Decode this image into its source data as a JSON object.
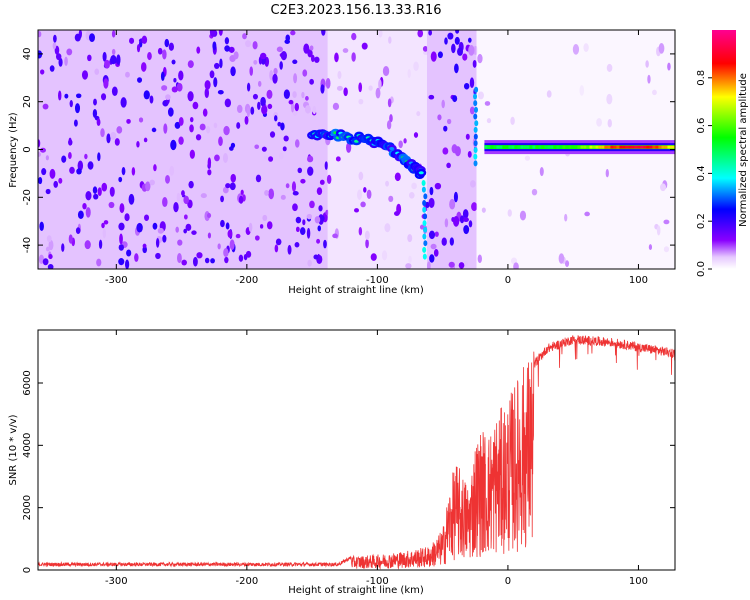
{
  "title": "C2E3.2023.156.13.33.R16",
  "chart_data": [
    {
      "type": "heatmap",
      "xlabel": "Height of straight line (km)",
      "ylabel": "Frequency (Hz)",
      "xlim": [
        -360,
        128
      ],
      "ylim": [
        -50,
        50
      ],
      "x_ticks": [
        -300,
        -200,
        -100,
        0,
        100
      ],
      "y_ticks": [
        -40,
        -20,
        0,
        20,
        40
      ],
      "grid": false,
      "colorbar": {
        "label": "Normalized spectral amplitude",
        "range": [
          0.0,
          1.0
        ],
        "ticks": [
          0.0,
          0.2,
          0.4,
          0.6,
          0.8
        ],
        "colormap": "rainbow (white-purple-blue-cyan-green-yellow-red-magenta)"
      },
      "regions": [
        {
          "x": [
            -360,
            -138
          ],
          "content": "noise",
          "level": 0.3
        },
        {
          "x": [
            -138,
            -62
          ],
          "content": "sparse noise",
          "level": 0.15
        },
        {
          "x": [
            -62,
            -24
          ],
          "content": "noise",
          "level": 0.3
        },
        {
          "x": [
            -24,
            128
          ],
          "content": "sparse noise",
          "level": 0.05
        }
      ],
      "signal_trace": {
        "x": [
          -150,
          -130,
          -110,
          -95,
          -80,
          -70,
          -66
        ],
        "freq": [
          5,
          6,
          4,
          2,
          -3,
          -8,
          -10
        ],
        "x_stable": [
          -18,
          128
        ],
        "freq_stable": 1,
        "peak_amplitude": 1.0
      }
    },
    {
      "type": "line",
      "xlabel": "Height of straight line (km)",
      "ylabel": "SNR (10 * v/v)",
      "xlim": [
        -360,
        128
      ],
      "ylim": [
        0,
        7700
      ],
      "x_ticks": [
        -300,
        -200,
        -100,
        0,
        100
      ],
      "y_ticks": [
        0,
        2000,
        4000,
        6000
      ],
      "grid": false,
      "series_color": "#ee3333",
      "envelope": {
        "x": [
          -360,
          -130,
          -120,
          -100,
          -80,
          -60,
          -50,
          -45,
          -40,
          -30,
          -25,
          -20,
          -15,
          -10,
          0,
          10,
          20,
          30,
          50,
          80,
          100,
          128
        ],
        "y": [
          180,
          180,
          400,
          450,
          550,
          700,
          1200,
          2400,
          3200,
          2500,
          3800,
          4200,
          4000,
          4500,
          5000,
          5900,
          6600,
          7100,
          7400,
          7300,
          7150,
          6950
        ]
      }
    }
  ]
}
